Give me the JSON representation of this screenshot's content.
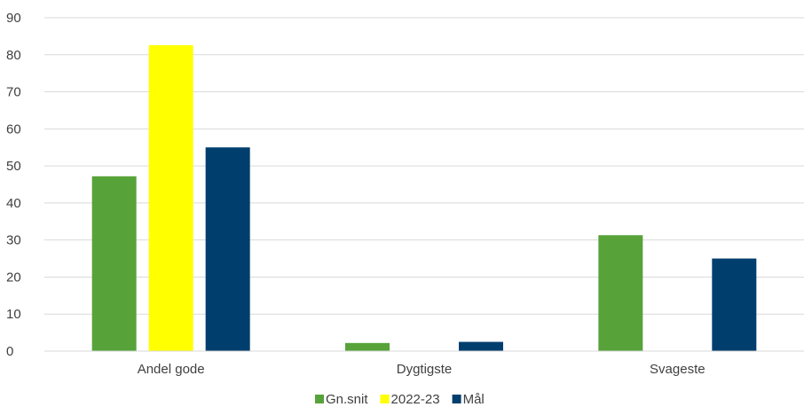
{
  "chart_data": {
    "type": "bar",
    "categories": [
      "Andel gode",
      "Dygtigste",
      "Svageste"
    ],
    "series": [
      {
        "name": "Gn.snit",
        "color": "#57A33A",
        "values": [
          47.2,
          2.2,
          31.3
        ]
      },
      {
        "name": "2022-23",
        "color": "#FFFF00",
        "values": [
          82.6,
          null,
          null
        ]
      },
      {
        "name": "Mål",
        "color": "#003E6E",
        "values": [
          55,
          2.5,
          25
        ]
      }
    ],
    "ylim": [
      0,
      90
    ],
    "yticks": [
      "0",
      "10",
      "20",
      "30",
      "40",
      "50",
      "60",
      "70",
      "80",
      "90"
    ],
    "grid": true,
    "legend_position": "bottom"
  }
}
